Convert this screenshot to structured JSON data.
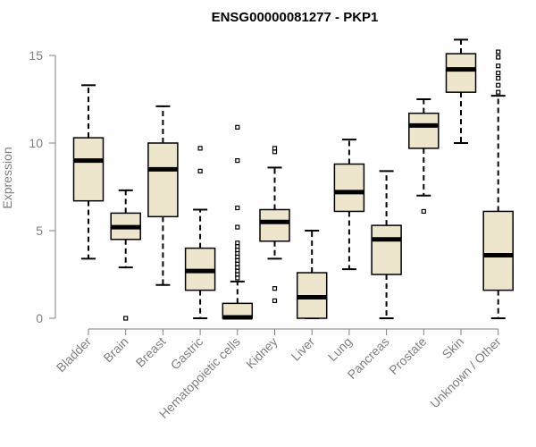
{
  "chart_data": {
    "type": "boxplot",
    "title": "ENSG00000081277 - PKP1",
    "xlabel": "",
    "ylabel": "Expression",
    "ylim": [
      0,
      15.8
    ],
    "yticks": [
      0,
      5,
      10,
      15
    ],
    "colors": {
      "box_fill": "#ede6cc",
      "box_stroke": "#000000",
      "axis": "#808080"
    },
    "categories": [
      "Bladder",
      "Brain",
      "Breast",
      "Gastric",
      "Hematopoietic cells",
      "Kidney",
      "Liver",
      "Lung",
      "Pancreas",
      "Prostate",
      "Skin",
      "Unknown / Other"
    ],
    "boxes": [
      {
        "name": "Bladder",
        "whisker_low": 3.4,
        "q1": 6.7,
        "median": 9.0,
        "q3": 10.3,
        "whisker_high": 13.3,
        "outliers": []
      },
      {
        "name": "Brain",
        "whisker_low": 2.9,
        "q1": 4.5,
        "median": 5.2,
        "q3": 6.0,
        "whisker_high": 7.3,
        "outliers": [
          0.0
        ]
      },
      {
        "name": "Breast",
        "whisker_low": 1.9,
        "q1": 5.8,
        "median": 8.5,
        "q3": 10.0,
        "whisker_high": 12.1,
        "outliers": []
      },
      {
        "name": "Gastric",
        "whisker_low": 0.0,
        "q1": 1.6,
        "median": 2.7,
        "q3": 4.0,
        "whisker_high": 6.2,
        "outliers": [
          8.4,
          9.7
        ]
      },
      {
        "name": "Hematopoietic cells",
        "whisker_low": 0.0,
        "q1": 0.0,
        "median": 0.05,
        "q3": 0.85,
        "whisker_high": 2.1,
        "outliers": [
          2.3,
          2.5,
          2.7,
          2.9,
          3.1,
          3.3,
          3.5,
          3.7,
          3.9,
          4.1,
          4.3,
          5.2,
          6.3,
          9.0,
          10.9
        ]
      },
      {
        "name": "Kidney",
        "whisker_low": 3.4,
        "q1": 4.4,
        "median": 5.5,
        "q3": 6.2,
        "whisker_high": 8.6,
        "outliers": [
          1.0,
          1.7,
          9.5,
          9.7
        ]
      },
      {
        "name": "Liver",
        "whisker_low": 0.0,
        "q1": 0.0,
        "median": 1.2,
        "q3": 2.6,
        "whisker_high": 5.0,
        "outliers": []
      },
      {
        "name": "Lung",
        "whisker_low": 2.8,
        "q1": 6.1,
        "median": 7.2,
        "q3": 8.8,
        "whisker_high": 10.2,
        "outliers": []
      },
      {
        "name": "Pancreas",
        "whisker_low": 0.0,
        "q1": 2.5,
        "median": 4.5,
        "q3": 5.3,
        "whisker_high": 8.4,
        "outliers": []
      },
      {
        "name": "Prostate",
        "whisker_low": 7.0,
        "q1": 9.7,
        "median": 11.0,
        "q3": 11.7,
        "whisker_high": 12.5,
        "outliers": [
          6.1
        ]
      },
      {
        "name": "Skin",
        "whisker_low": 10.0,
        "q1": 12.9,
        "median": 14.2,
        "q3": 15.1,
        "whisker_high": 15.9,
        "outliers": []
      },
      {
        "name": "Unknown / Other",
        "whisker_low": 0.0,
        "q1": 1.6,
        "median": 3.6,
        "q3": 6.1,
        "whisker_high": 12.7,
        "outliers": [
          12.9,
          13.3,
          13.7,
          14.0,
          14.4,
          14.9,
          15.2
        ]
      }
    ]
  }
}
